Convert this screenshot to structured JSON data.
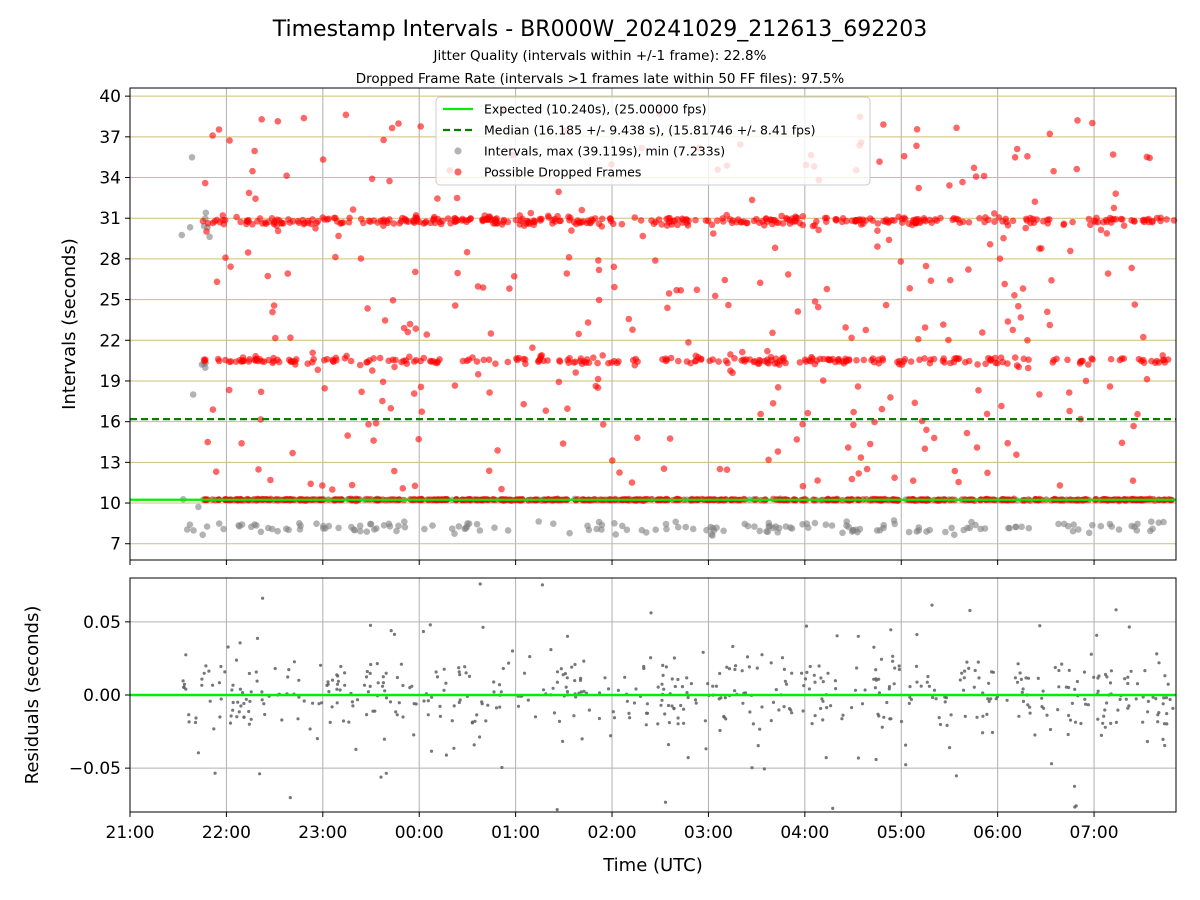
{
  "title": "Timestamp Intervals - BR000W_20241029_212613_692203",
  "subtitle1": "Jitter Quality (intervals within +/-1 frame): 22.8%",
  "subtitle2": "Dropped Frame Rate (intervals >1 frames late within 50 FF files): 97.5%",
  "colors": {
    "expected": "#00ee00",
    "median": "#008000",
    "interval": "#808080",
    "dropped": "#ff0000",
    "hgrid_top": "#cdbf7a",
    "grid": "#b0b0b0",
    "residual": "#606060"
  },
  "chart_data": [
    {
      "type": "scatter",
      "ylabel": "Intervals (seconds)",
      "ylim": [
        5.8,
        40.6
      ],
      "yticks": [
        "7",
        "10",
        "13",
        "16",
        "19",
        "22",
        "25",
        "28",
        "31",
        "34",
        "37",
        "40"
      ],
      "grid": true,
      "legend_placement": "top-center",
      "legend": [
        "Expected (10.240s), (25.00000 fps)",
        "Median (16.185 +/- 9.438 s), (15.81746 +/- 8.41 fps)",
        "Intervals, max (39.119s), min (7.233s)",
        "Possible Dropped Frames"
      ],
      "expected_interval": 10.24,
      "median_interval": 16.185,
      "interval_max": 39.119,
      "interval_min": 7.233,
      "approx_series": [
        {
          "name": "Intervals, max (39.119s), min (7.233s)",
          "x_start": "21:32",
          "x_end": "07:50",
          "mode_values": [
            7.9,
            8.5,
            10.24,
            20.5,
            30.8
          ]
        },
        {
          "name": "Possible Dropped Frames",
          "x_start": "21:45",
          "x_end": "07:50",
          "band_values": [
            10.24,
            20.5,
            30.8
          ],
          "scatter_range": [
            11.0,
            39.1
          ]
        }
      ]
    },
    {
      "type": "scatter",
      "xlabel": "Time (UTC)",
      "ylabel": "Residuals (seconds)",
      "ylim": [
        -0.08,
        0.08
      ],
      "yticks": [
        "−0.05",
        "0.00",
        "0.05"
      ],
      "grid": true,
      "approx_series": [
        {
          "name": "residuals",
          "x_start": "21:32",
          "x_end": "07:50",
          "core_range": [
            -0.02,
            0.02
          ],
          "spread_range": [
            -0.08,
            0.08
          ]
        }
      ]
    }
  ],
  "xaxis": {
    "tick_labels": [
      "21:00",
      "22:00",
      "23:00",
      "00:00",
      "01:00",
      "02:00",
      "03:00",
      "04:00",
      "05:00",
      "06:00",
      "07:00"
    ],
    "range_hours": [
      0,
      10.85
    ]
  }
}
